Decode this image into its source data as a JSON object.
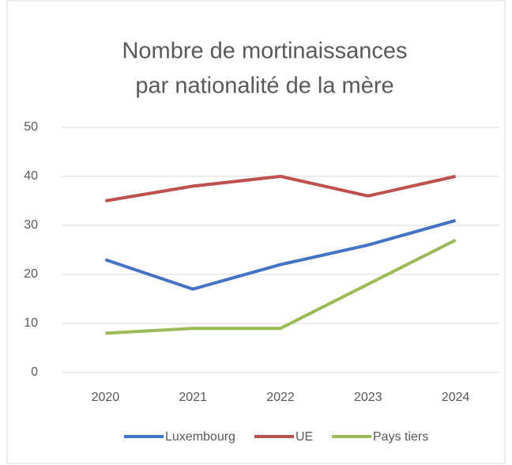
{
  "chart_data": {
    "type": "line",
    "title": [
      "Nombre de mortinaissances",
      "par nationalité de la mère"
    ],
    "categories": [
      "2020",
      "2021",
      "2022",
      "2023",
      "2024"
    ],
    "series": [
      {
        "name": "Luxembourg",
        "color": "#4472c4",
        "values": [
          23,
          17,
          22,
          26,
          31
        ]
      },
      {
        "name": "UE",
        "color": "#c0504d",
        "values": [
          35,
          38,
          40,
          36,
          40
        ]
      },
      {
        "name": "Pays tiers",
        "color": "#9bbb59",
        "values": [
          8,
          9,
          9,
          18,
          27
        ]
      }
    ],
    "ylim": [
      0,
      50
    ],
    "yticks": [
      0,
      10,
      20,
      30,
      40,
      50
    ],
    "grid": true,
    "legend": "bottom"
  }
}
